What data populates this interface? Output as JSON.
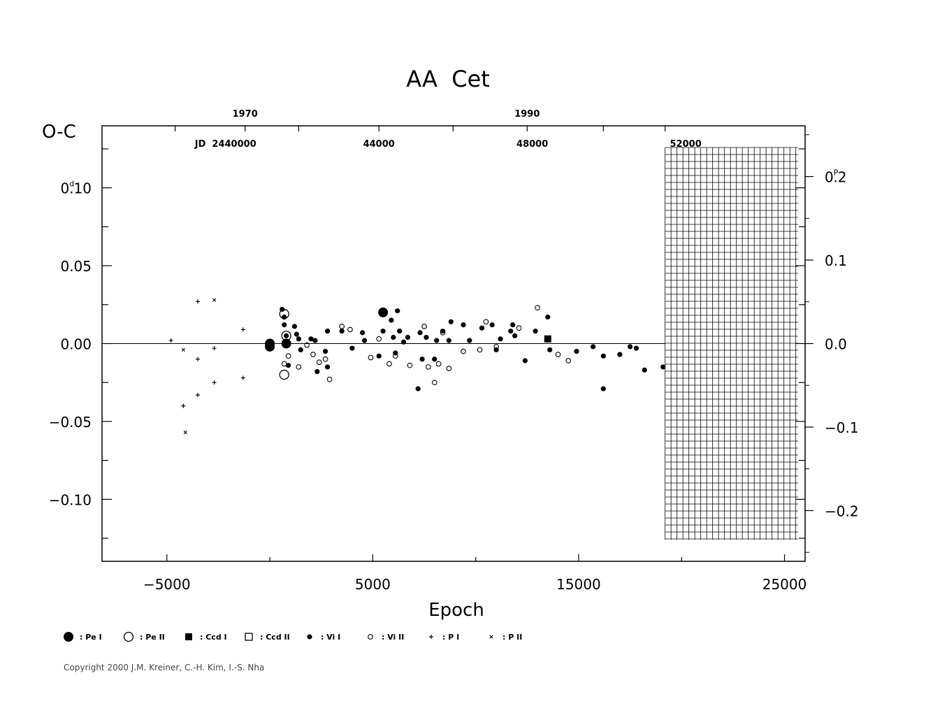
{
  "chart_data": {
    "type": "scatter",
    "title": "AA  Cet",
    "xlabel": "Epoch",
    "ylabel": "O-C",
    "y_unit": "d",
    "right_axis_unit": "P",
    "xlim": [
      -8150,
      26000
    ],
    "ylim": [
      -0.1398,
      0.1398
    ],
    "x_ticks": [
      -5000,
      5000,
      15000,
      25000
    ],
    "x_tick_labels": [
      "−5000",
      "5000",
      "15000",
      "25000"
    ],
    "y_ticks": [
      0.1,
      0.05,
      0.0,
      -0.05,
      -0.1
    ],
    "y_tick_labels": [
      "0.10",
      "0.05",
      "0.00",
      "−0.05",
      "−0.10"
    ],
    "y_tick_label_top": {
      "lead": "0",
      "sup": "d",
      "rest": ".10"
    },
    "right_ticks": [
      0.2,
      0.1,
      0.0,
      -0.1,
      -0.2
    ],
    "right_tick_labels": [
      "0.2",
      "0.1",
      "0.0",
      "−0.1",
      "−0.2"
    ],
    "right_tick_label_top": {
      "lead": "0",
      "sup": "P",
      "rest": ".2"
    },
    "period_days": 0.5362,
    "year_ticks": [
      1970,
      1990
    ],
    "year_epochs": [
      -1200,
      12500
    ],
    "jd_ticks": [
      {
        "label": "JD  2440000",
        "epoch": -2150
      },
      {
        "label": "44000",
        "epoch": 5300
      },
      {
        "label": "48000",
        "epoch": 12750
      },
      {
        "label": "52000",
        "epoch": 20200
      }
    ],
    "future_region_start_epoch": 19200,
    "grid": false,
    "legend_position": "bottom-left",
    "legend": [
      {
        "symbol": "pe1",
        "label": ": Pe I"
      },
      {
        "symbol": "pe2",
        "label": ": Pe II"
      },
      {
        "symbol": "ccd1",
        "label": ": Ccd I"
      },
      {
        "symbol": "ccd2",
        "label": ": Ccd II"
      },
      {
        "symbol": "v1",
        "label": ": Vi I"
      },
      {
        "symbol": "v2",
        "label": ": Vi II"
      },
      {
        "symbol": "p1",
        "label": ": P I"
      },
      {
        "symbol": "p2",
        "label": ": P II"
      }
    ],
    "series": [
      {
        "symbol": "pe1",
        "points": [
          [
            0,
            -0.002
          ],
          [
            0,
            0.0
          ],
          [
            800,
            0.0
          ],
          [
            5500,
            0.02
          ]
        ]
      },
      {
        "symbol": "pe2",
        "points": [
          [
            700,
            0.019
          ],
          [
            700,
            -0.02
          ],
          [
            800,
            0.005
          ]
        ]
      },
      {
        "symbol": "ccd1",
        "points": [
          [
            13500,
            0.003
          ]
        ]
      },
      {
        "symbol": "v1",
        "points": [
          [
            600,
            0.022
          ],
          [
            700,
            0.017
          ],
          [
            700,
            0.012
          ],
          [
            800,
            0.005
          ],
          [
            900,
            -0.014
          ],
          [
            1200,
            0.011
          ],
          [
            1300,
            0.006
          ],
          [
            1400,
            0.003
          ],
          [
            1500,
            -0.004
          ],
          [
            2000,
            0.003
          ],
          [
            2200,
            0.002
          ],
          [
            2300,
            -0.018
          ],
          [
            2700,
            -0.005
          ],
          [
            2800,
            -0.015
          ],
          [
            2800,
            0.008
          ],
          [
            3500,
            0.008
          ],
          [
            4000,
            -0.003
          ],
          [
            4500,
            0.007
          ],
          [
            4600,
            0.002
          ],
          [
            5300,
            -0.008
          ],
          [
            5500,
            0.008
          ],
          [
            5900,
            0.015
          ],
          [
            6000,
            0.004
          ],
          [
            6100,
            -0.006
          ],
          [
            6200,
            0.021
          ],
          [
            6300,
            0.008
          ],
          [
            6500,
            0.001
          ],
          [
            6700,
            0.004
          ],
          [
            7200,
            -0.029
          ],
          [
            7300,
            0.007
          ],
          [
            7400,
            -0.01
          ],
          [
            7600,
            0.004
          ],
          [
            8000,
            -0.01
          ],
          [
            8100,
            0.002
          ],
          [
            8400,
            0.008
          ],
          [
            8700,
            0.002
          ],
          [
            8800,
            0.014
          ],
          [
            9400,
            0.012
          ],
          [
            9700,
            0.002
          ],
          [
            10300,
            0.01
          ],
          [
            10800,
            0.012
          ],
          [
            11000,
            -0.004
          ],
          [
            11200,
            0.003
          ],
          [
            11700,
            0.008
          ],
          [
            11800,
            0.012
          ],
          [
            11900,
            0.005
          ],
          [
            12400,
            -0.011
          ],
          [
            12900,
            0.008
          ],
          [
            13500,
            0.017
          ],
          [
            13600,
            -0.004
          ],
          [
            14900,
            -0.005
          ],
          [
            15700,
            -0.002
          ],
          [
            16200,
            -0.008
          ],
          [
            16200,
            -0.029
          ],
          [
            17000,
            -0.007
          ],
          [
            17500,
            -0.002
          ],
          [
            17800,
            -0.003
          ],
          [
            18200,
            -0.017
          ],
          [
            19100,
            -0.015
          ]
        ]
      },
      {
        "symbol": "v2",
        "points": [
          [
            700,
            -0.013
          ],
          [
            900,
            -0.008
          ],
          [
            1400,
            -0.015
          ],
          [
            1800,
            -0.001
          ],
          [
            2100,
            -0.007
          ],
          [
            2400,
            -0.012
          ],
          [
            2700,
            -0.01
          ],
          [
            2900,
            -0.023
          ],
          [
            3500,
            0.011
          ],
          [
            3900,
            0.009
          ],
          [
            4900,
            -0.009
          ],
          [
            5300,
            0.003
          ],
          [
            5800,
            -0.013
          ],
          [
            6100,
            -0.008
          ],
          [
            6800,
            -0.014
          ],
          [
            7500,
            0.011
          ],
          [
            7700,
            -0.015
          ],
          [
            8000,
            -0.025
          ],
          [
            8200,
            -0.013
          ],
          [
            8400,
            0.007
          ],
          [
            8700,
            -0.016
          ],
          [
            9400,
            -0.005
          ],
          [
            10200,
            -0.004
          ],
          [
            10500,
            0.014
          ],
          [
            11000,
            -0.002
          ],
          [
            12100,
            0.01
          ],
          [
            13000,
            0.023
          ],
          [
            14000,
            -0.007
          ],
          [
            14500,
            -0.011
          ]
        ]
      },
      {
        "symbol": "p1",
        "points": [
          [
            -4800,
            0.002
          ],
          [
            -4200,
            -0.04
          ],
          [
            -3500,
            0.027
          ],
          [
            -3500,
            -0.01
          ],
          [
            -3500,
            -0.033
          ],
          [
            -2700,
            -0.003
          ],
          [
            -2700,
            -0.025
          ],
          [
            -1300,
            0.009
          ],
          [
            -1300,
            -0.022
          ]
        ]
      },
      {
        "symbol": "p2",
        "points": [
          [
            -4200,
            -0.004
          ],
          [
            -4100,
            -0.057
          ],
          [
            -2700,
            0.028
          ]
        ]
      }
    ]
  },
  "copyright": "Copyright 2000 J.M. Kreiner, C.-H. Kim, I.-S. Nha"
}
